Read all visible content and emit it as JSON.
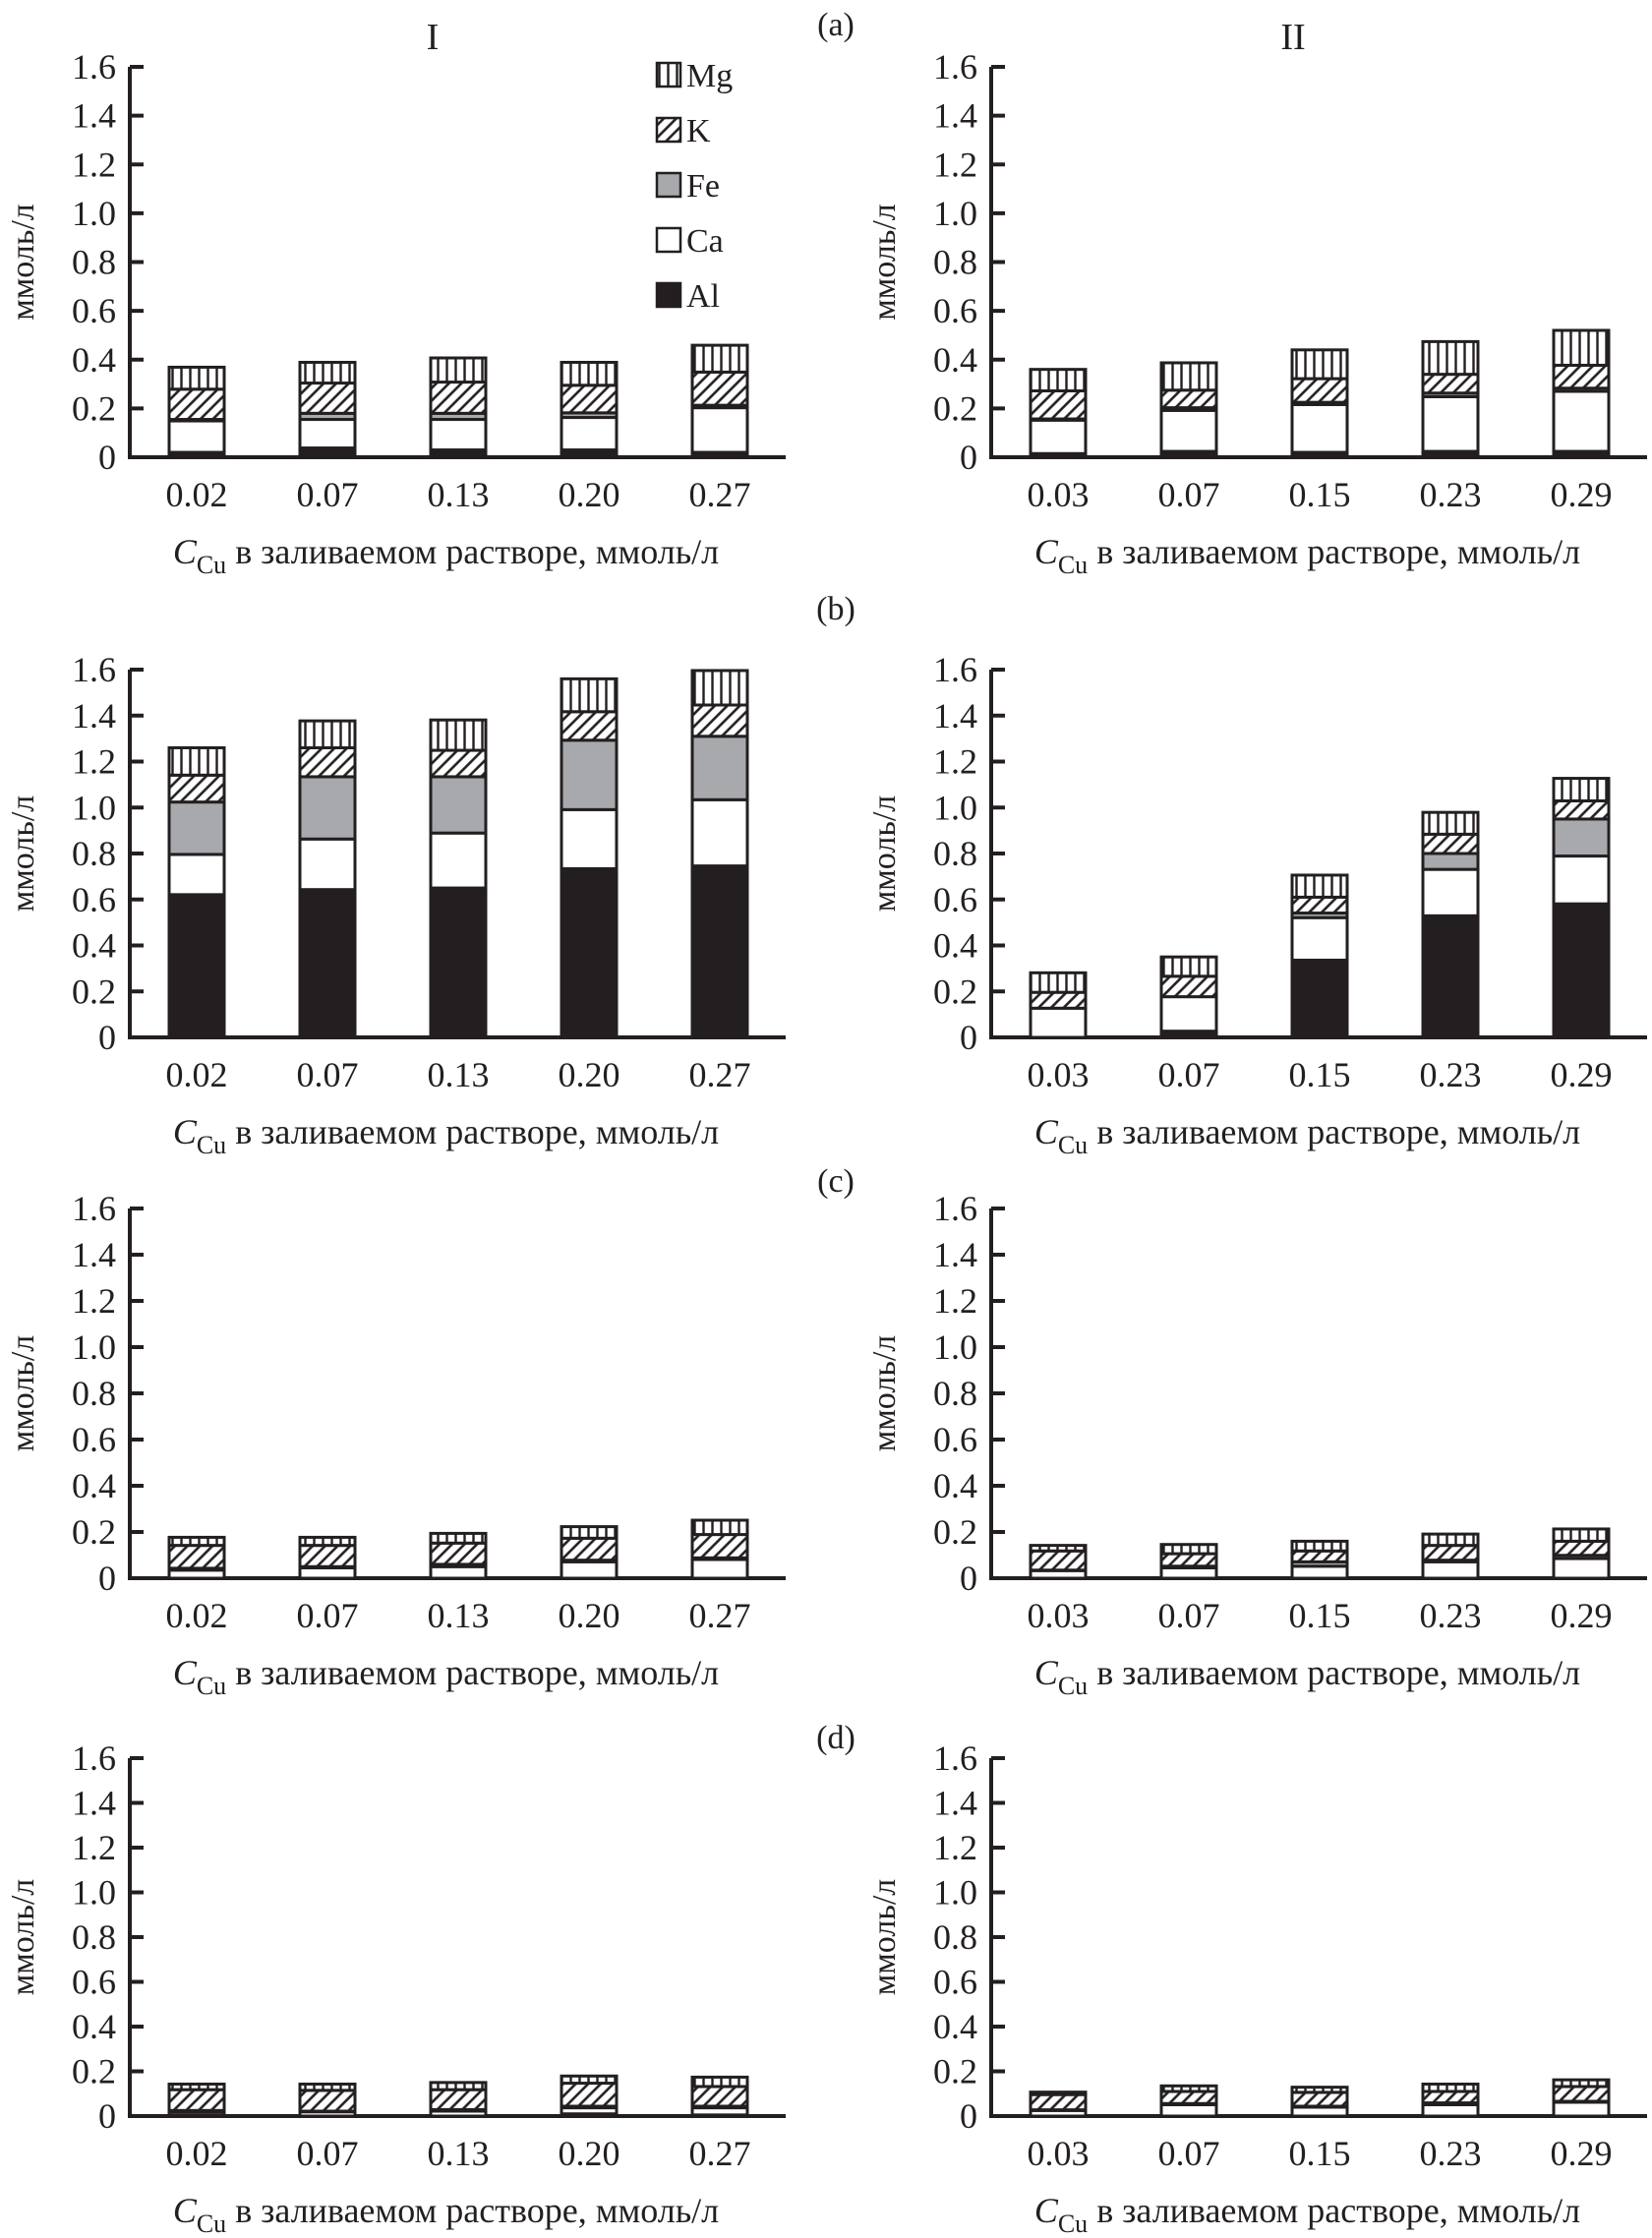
{
  "figure": {
    "column_titles": [
      "I",
      "II"
    ],
    "panel_letters": [
      "(a)",
      "(b)",
      "(c)",
      "(d)"
    ],
    "ylabel": "ммоль/л",
    "xlabel_main": "C",
    "xlabel_sub": "Cu",
    "xlabel_rest": " в заливаемом растворе, ммоль/л"
  },
  "chart_data": {
    "type": "bar",
    "stacked": true,
    "series_names": [
      "Al",
      "Ca",
      "Fe",
      "K",
      "Mg"
    ],
    "legend": [
      {
        "name": "Mg",
        "pattern": "vertical-lines"
      },
      {
        "name": "K",
        "pattern": "diagonal-hatch"
      },
      {
        "name": "Fe",
        "pattern": "gray",
        "color": "#a7a9ac"
      },
      {
        "name": "Ca",
        "pattern": "white",
        "color": "#ffffff"
      },
      {
        "name": "Al",
        "pattern": "black",
        "color": "#231f20"
      }
    ],
    "legend_placement": "top-right of panel (a) I",
    "ylim": [
      0,
      1.6
    ],
    "yticks": [
      "0",
      "0.2",
      "0.4",
      "0.6",
      "0.8",
      "1.0",
      "1.2",
      "1.4",
      "1.6"
    ],
    "ylabel": "ммоль/л",
    "xlabel": "C_Cu в заливаемом растворе, ммоль/л",
    "panels": [
      {
        "row": "(a)",
        "column": "I",
        "categories": [
          "0.02",
          "0.07",
          "0.13",
          "0.20",
          "0.27"
        ],
        "series": [
          {
            "name": "Al",
            "values": [
              0.02,
              0.038,
              0.03,
              0.03,
              0.02
            ]
          },
          {
            "name": "Ca",
            "values": [
              0.129,
              0.117,
              0.125,
              0.133,
              0.183
            ]
          },
          {
            "name": "Fe",
            "values": [
              0.006,
              0.025,
              0.025,
              0.019,
              0.01
            ]
          },
          {
            "name": "K",
            "values": [
              0.124,
              0.124,
              0.128,
              0.113,
              0.136
            ]
          },
          {
            "name": "Mg",
            "values": [
              0.09,
              0.085,
              0.099,
              0.094,
              0.11
            ]
          }
        ]
      },
      {
        "row": "(a)",
        "column": "II",
        "categories": [
          "0.03",
          "0.07",
          "0.15",
          "0.23",
          "0.29"
        ],
        "series": [
          {
            "name": "Al",
            "values": [
              0.015,
              0.024,
              0.02,
              0.024,
              0.024
            ]
          },
          {
            "name": "Ca",
            "values": [
              0.137,
              0.168,
              0.196,
              0.224,
              0.246
            ]
          },
          {
            "name": "Fe",
            "values": [
              0.005,
              0.011,
              0.009,
              0.015,
              0.013
            ]
          },
          {
            "name": "K",
            "values": [
              0.115,
              0.072,
              0.097,
              0.077,
              0.094
            ]
          },
          {
            "name": "Mg",
            "values": [
              0.088,
              0.112,
              0.118,
              0.134,
              0.143
            ]
          }
        ]
      },
      {
        "row": "(b)",
        "column": "I",
        "categories": [
          "0.02",
          "0.07",
          "0.13",
          "0.20",
          "0.27"
        ],
        "series": [
          {
            "name": "Al",
            "values": [
              0.621,
              0.643,
              0.65,
              0.734,
              0.746
            ]
          },
          {
            "name": "Ca",
            "values": [
              0.175,
              0.22,
              0.239,
              0.257,
              0.288
            ]
          },
          {
            "name": "Fe",
            "values": [
              0.228,
              0.271,
              0.245,
              0.302,
              0.276
            ]
          },
          {
            "name": "K",
            "values": [
              0.117,
              0.126,
              0.115,
              0.124,
              0.136
            ]
          },
          {
            "name": "Mg",
            "values": [
              0.119,
              0.117,
              0.132,
              0.143,
              0.15
            ]
          }
        ]
      },
      {
        "row": "(b)",
        "column": "II",
        "categories": [
          "0.03",
          "0.07",
          "0.15",
          "0.23",
          "0.29"
        ],
        "series": [
          {
            "name": "Al",
            "values": [
              0.0,
              0.027,
              0.336,
              0.529,
              0.581
            ]
          },
          {
            "name": "Ca",
            "values": [
              0.127,
              0.15,
              0.185,
              0.202,
              0.208
            ]
          },
          {
            "name": "Fe",
            "values": [
              0.0,
              0.0,
              0.02,
              0.069,
              0.161
            ]
          },
          {
            "name": "K",
            "values": [
              0.069,
              0.089,
              0.069,
              0.084,
              0.079
            ]
          },
          {
            "name": "Mg",
            "values": [
              0.085,
              0.084,
              0.096,
              0.095,
              0.098
            ]
          }
        ]
      },
      {
        "row": "(c)",
        "column": "I",
        "categories": [
          "0.02",
          "0.07",
          "0.13",
          "0.20",
          "0.27"
        ],
        "series": [
          {
            "name": "Al",
            "values": [
              0.0,
              0.0,
              0.0,
              0.0,
              0.0
            ]
          },
          {
            "name": "Ca",
            "values": [
              0.035,
              0.045,
              0.05,
              0.071,
              0.081
            ]
          },
          {
            "name": "Fe",
            "values": [
              0.008,
              0.005,
              0.01,
              0.007,
              0.007
            ]
          },
          {
            "name": "K",
            "values": [
              0.099,
              0.092,
              0.092,
              0.095,
              0.101
            ]
          },
          {
            "name": "Mg",
            "values": [
              0.035,
              0.035,
              0.042,
              0.05,
              0.062
            ]
          }
        ]
      },
      {
        "row": "(c)",
        "column": "II",
        "categories": [
          "0.03",
          "0.07",
          "0.15",
          "0.23",
          "0.29"
        ],
        "series": [
          {
            "name": "Al",
            "values": [
              0.0,
              0.0,
              0.0,
              0.0,
              0.0
            ]
          },
          {
            "name": "Ca",
            "values": [
              0.033,
              0.045,
              0.052,
              0.071,
              0.085
            ]
          },
          {
            "name": "Fe",
            "values": [
              0.002,
              0.007,
              0.019,
              0.007,
              0.014
            ]
          },
          {
            "name": "K",
            "values": [
              0.083,
              0.054,
              0.047,
              0.064,
              0.061
            ]
          },
          {
            "name": "Mg",
            "values": [
              0.024,
              0.04,
              0.042,
              0.049,
              0.053
            ]
          }
        ]
      },
      {
        "row": "(d)",
        "column": "I",
        "categories": [
          "0.02",
          "0.07",
          "0.13",
          "0.20",
          "0.27"
        ],
        "series": [
          {
            "name": "Al",
            "values": [
              0.005,
              0.0,
              0.0,
              0.01,
              0.005
            ]
          },
          {
            "name": "Ca",
            "values": [
              0.014,
              0.019,
              0.022,
              0.027,
              0.032
            ]
          },
          {
            "name": "Fe",
            "values": [
              0.006,
              0.003,
              0.007,
              0.007,
              0.007
            ]
          },
          {
            "name": "K",
            "values": [
              0.093,
              0.093,
              0.089,
              0.103,
              0.088
            ]
          },
          {
            "name": "Mg",
            "values": [
              0.025,
              0.028,
              0.032,
              0.032,
              0.042
            ]
          }
        ]
      },
      {
        "row": "(d)",
        "column": "II",
        "categories": [
          "0.03",
          "0.07",
          "0.15",
          "0.23",
          "0.29"
        ],
        "series": [
          {
            "name": "Al",
            "values": [
              0.0,
              0.0,
              0.0,
              0.0,
              0.0
            ]
          },
          {
            "name": "Ca",
            "values": [
              0.025,
              0.051,
              0.04,
              0.051,
              0.062
            ]
          },
          {
            "name": "Fe",
            "values": [
              0.003,
              0.005,
              0.004,
              0.008,
              0.004
            ]
          },
          {
            "name": "K",
            "values": [
              0.068,
              0.054,
              0.062,
              0.051,
              0.066
            ]
          },
          {
            "name": "Mg",
            "values": [
              0.011,
              0.025,
              0.023,
              0.033,
              0.03
            ]
          }
        ]
      }
    ]
  }
}
